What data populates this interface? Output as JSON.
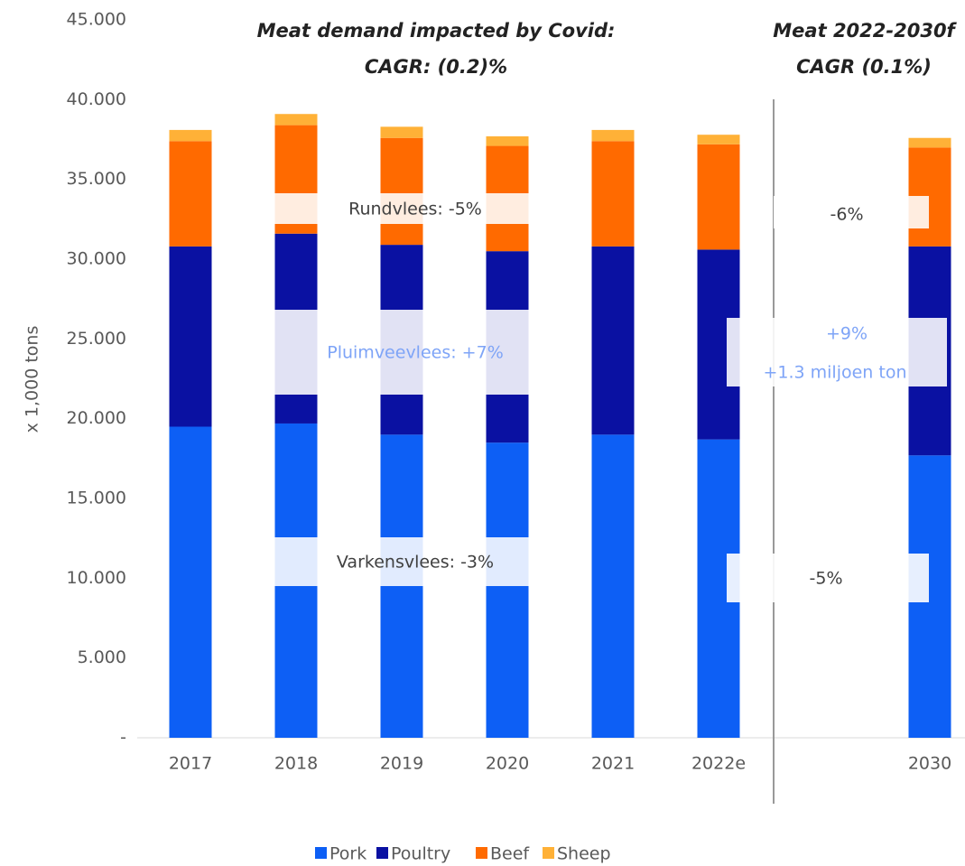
{
  "chart_data": {
    "type": "stacked_bar",
    "headers": [
      "Meat demand impacted by Covid:",
      "CAGR: (0.2)%",
      "Meat 2022-2030f",
      "CAGR (0.1%)"
    ],
    "y_label": "x 1,000 tons",
    "categories": [
      "2017",
      "2018",
      "2019",
      "2020",
      "2021",
      "2022e",
      null,
      "2030"
    ],
    "series": [
      {
        "name": "Pork",
        "color": "#0d5ff5",
        "values": [
          19500,
          19700,
          19000,
          18500,
          19000,
          18700,
          null,
          17700
        ]
      },
      {
        "name": "Poultry",
        "color": "#0a11a2",
        "values": [
          11300,
          11900,
          11900,
          12000,
          11800,
          11900,
          null,
          13100
        ]
      },
      {
        "name": "Beef",
        "color": "#ff6a00",
        "values": [
          6600,
          6800,
          6700,
          6600,
          6600,
          6600,
          null,
          6200
        ]
      },
      {
        "name": "Sheep",
        "color": "#ffb137",
        "values": [
          700,
          700,
          700,
          600,
          700,
          600,
          null,
          600
        ]
      }
    ],
    "ylim": [
      0,
      45000
    ],
    "yticks": [
      {
        "value": 0,
        "label": "-"
      },
      {
        "value": 5000,
        "label": "5.000"
      },
      {
        "value": 10000,
        "label": "10.000"
      },
      {
        "value": 15000,
        "label": "15.000"
      },
      {
        "value": 20000,
        "label": "20.000"
      },
      {
        "value": 25000,
        "label": "25.000"
      },
      {
        "value": 30000,
        "label": "30.000"
      },
      {
        "value": 35000,
        "label": "35.000"
      },
      {
        "value": 40000,
        "label": "40.000"
      },
      {
        "value": 45000,
        "label": "45.000"
      }
    ],
    "annotations": [
      "Rundvlees: -5%",
      "Pluimveevlees: +7%",
      "Varkensvlees: -3%",
      "-6%",
      "+9%",
      "+1.3 miljoen ton",
      "-5%"
    ],
    "legend": "bottom",
    "grid": false
  }
}
